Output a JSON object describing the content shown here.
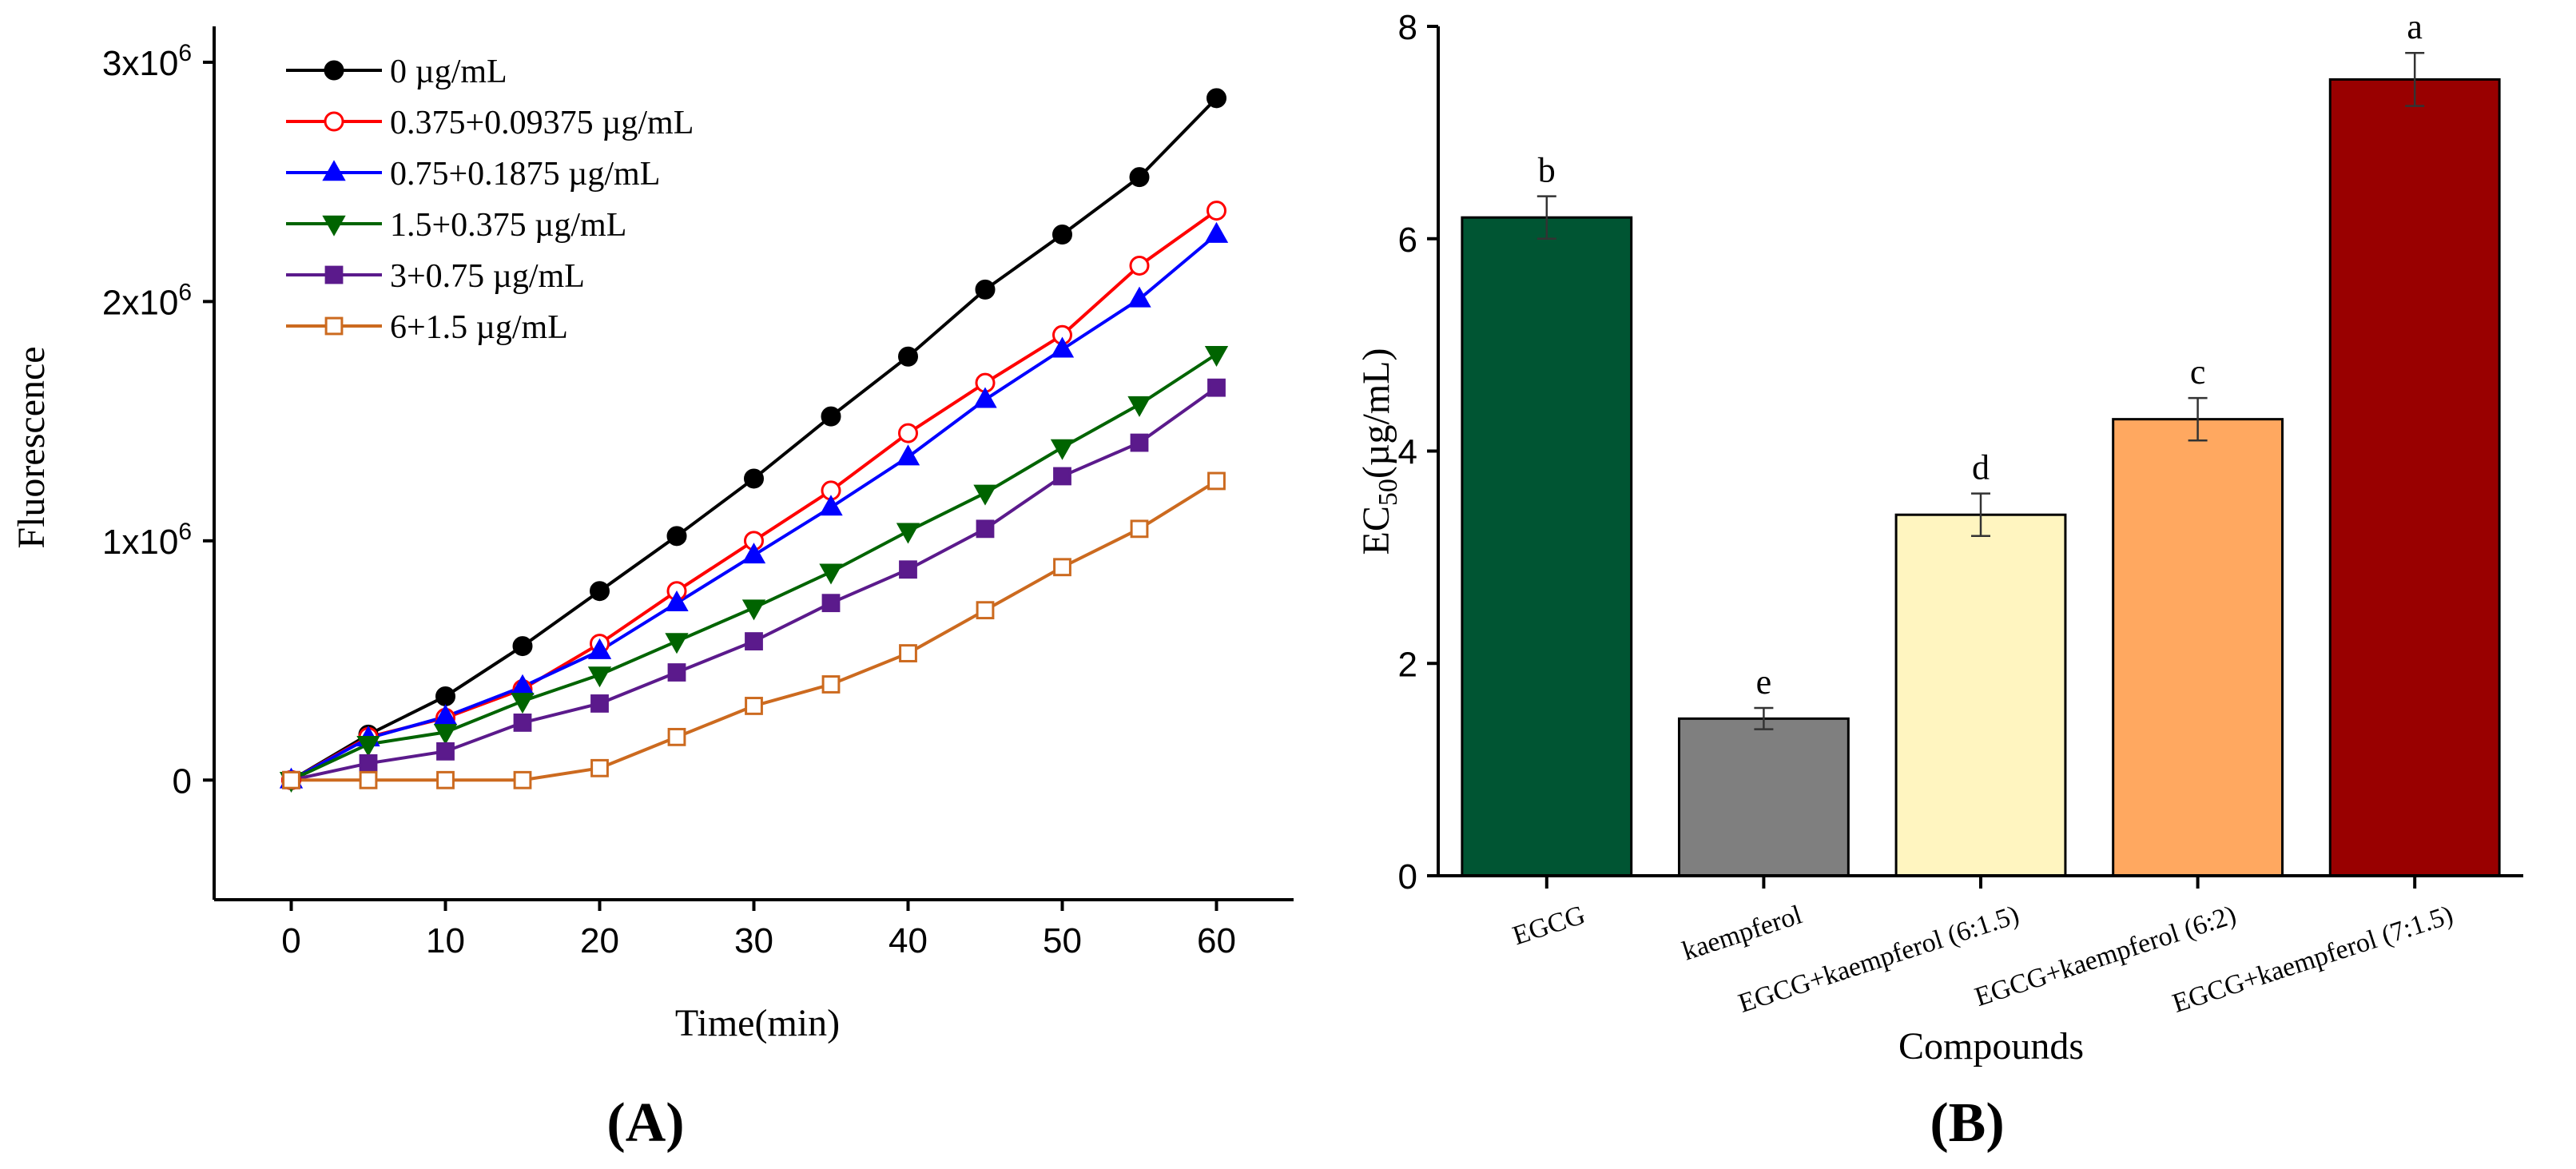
{
  "panels": {
    "a_label": "(A)",
    "b_label": "(B)"
  },
  "colors": {
    "axis": "#000000",
    "black": "#000000",
    "red": "#ff0000",
    "blue": "#0000ff",
    "green": "#006400",
    "purple": "#5b1a8c",
    "orange": "#cc6a1f"
  },
  "chart_data": [
    {
      "type": "line",
      "title": "",
      "xlabel": "Time(min)",
      "ylabel": "Fluorescence",
      "xlim": [
        -5,
        65
      ],
      "ylim": [
        -500000,
        3150000
      ],
      "x_ticks": [
        0,
        10,
        20,
        30,
        40,
        50,
        60
      ],
      "x_tick_labels": [
        "0",
        "10",
        "20",
        "30",
        "40",
        "50",
        "60"
      ],
      "y_ticks": [
        0,
        1000000,
        2000000,
        3000000
      ],
      "y_tick_labels": [
        {
          "base": "0",
          "exp": ""
        },
        {
          "base": "1x10",
          "exp": "6"
        },
        {
          "base": "2x10",
          "exp": "6"
        },
        {
          "base": "3x10",
          "exp": "6"
        }
      ],
      "legend_position": "top-left",
      "x": [
        0,
        5,
        10,
        15,
        20,
        25,
        30,
        35,
        40,
        45,
        50,
        55,
        60
      ],
      "series": [
        {
          "name": "0 µg/mL",
          "color": "#000000",
          "marker": "circle",
          "filled": true,
          "values": [
            0,
            190000,
            350000,
            560000,
            790000,
            1020000,
            1260000,
            1520000,
            1770000,
            2050000,
            2280000,
            2520000,
            2850000
          ]
        },
        {
          "name": "0.375+0.09375 µg/mL",
          "color": "#ff0000",
          "marker": "circle",
          "filled": false,
          "values": [
            0,
            180000,
            260000,
            380000,
            570000,
            790000,
            1000000,
            1210000,
            1450000,
            1660000,
            1860000,
            2150000,
            2380000
          ]
        },
        {
          "name": "0.75+0.1875 µg/mL",
          "color": "#0000ff",
          "marker": "triangle-up",
          "filled": true,
          "values": [
            0,
            175000,
            265000,
            390000,
            540000,
            740000,
            940000,
            1140000,
            1350000,
            1590000,
            1800000,
            2010000,
            2280000
          ]
        },
        {
          "name": "1.5+0.375 µg/mL",
          "color": "#006400",
          "marker": "triangle-down",
          "filled": true,
          "values": [
            0,
            150000,
            200000,
            330000,
            440000,
            580000,
            720000,
            870000,
            1040000,
            1200000,
            1390000,
            1570000,
            1780000
          ]
        },
        {
          "name": "3+0.75 µg/mL",
          "color": "#5b1a8c",
          "marker": "square",
          "filled": true,
          "values": [
            0,
            70000,
            120000,
            240000,
            320000,
            450000,
            580000,
            740000,
            880000,
            1050000,
            1270000,
            1410000,
            1640000
          ]
        },
        {
          "name": "6+1.5 µg/mL",
          "color": "#cc6a1f",
          "marker": "square",
          "filled": false,
          "values": [
            0,
            0,
            0,
            0,
            50000,
            180000,
            310000,
            400000,
            530000,
            710000,
            890000,
            1050000,
            1250000
          ]
        }
      ]
    },
    {
      "type": "bar",
      "title": "",
      "xlabel": "Compounds",
      "ylabel": {
        "pre": "EC",
        "sub": "50",
        "post": "(µg/mL)"
      },
      "ylim": [
        0,
        8
      ],
      "y_ticks": [
        0,
        2,
        4,
        6,
        8
      ],
      "y_tick_labels": [
        "0",
        "2",
        "4",
        "6",
        "8"
      ],
      "categories": [
        "EGCG",
        "kaempferol",
        "EGCG+kaempferol (6:1.5)",
        "EGCG+kaempferol (6:2)",
        "EGCG+kaempferol (7:1.5)"
      ],
      "values": [
        6.2,
        1.48,
        3.4,
        4.3,
        7.5
      ],
      "errors": [
        0.2,
        0.1,
        0.2,
        0.2,
        0.25
      ],
      "significance": [
        "b",
        "e",
        "d",
        "c",
        "a"
      ],
      "bar_colors": [
        "#005533",
        "#7f7f7f",
        "#fff5c0",
        "#ffa860",
        "#990000"
      ]
    }
  ]
}
